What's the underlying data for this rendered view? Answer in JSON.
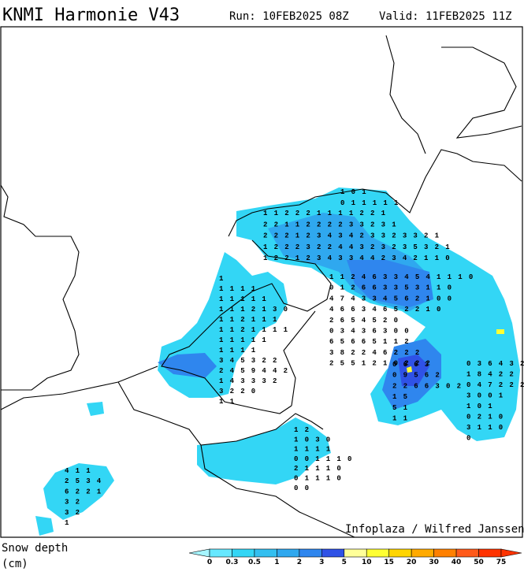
{
  "header": {
    "title": "KNMI Harmonie V43",
    "run": "Run: 10FEB2025 08Z",
    "valid": "Valid: 11FEB2025 11Z"
  },
  "credit": "Infoplaza / Wilfred Janssen",
  "legend": {
    "title": "Snow depth",
    "unit": "(cm)",
    "ticks": [
      0,
      0.3,
      0.5,
      1,
      2,
      3,
      5,
      10,
      15,
      20,
      30,
      40,
      50,
      75
    ],
    "colors": [
      "#a6f5ff",
      "#66e8ff",
      "#33d6f5",
      "#33bff0",
      "#2fa8ef",
      "#2f86ee",
      "#2f52e6",
      "#ffff99",
      "#ffff33",
      "#ffd500",
      "#ffaa00",
      "#ff8000",
      "#ff5a1a",
      "#ff3300"
    ]
  },
  "map_labels": [
    {
      "rows": [
        "1 0 1",
        "0 1 1 1 1 1"
      ]
    },
    {
      "rows": [
        "1 1 2 2 2 1 1 1 1 2 2 1",
        "2 2 1 1 2 2 2 2 3 3 2 3 1",
        "2 2 2 1 2 3 4 3 4 2 3 3 2 3 3 2 1",
        "1 2 2 2 3 2 2 4 4 3 2 3 2 3 5 3 2 1",
        "1 2 2 1 2 3 4 3 3 4 4 2 3 4 2 1 1 0"
      ]
    },
    {
      "rows": [
        "1 1 2 4 6 3 3 4 5 4 1 1 1 0",
        "0 1 2 6 6 3 3 5 3 1 1 0",
        "4 7 4 3 3 4 5 6 2 1 0 0",
        "4 6 6 3 4 6 5 2 2 1 0",
        "2 6 5 4 5 2 0",
        "0 3 4 3 6 3 0 0",
        "6 5 6 6 5 1 1 2",
        "3 8 2 2 4 6 2 2 2",
        "2 5 5 1 2 1 0 2 2 2"
      ]
    },
    {
      "rows": [
        "0 6 6 3",
        "0 9 5 6 2",
        "2 2 6 6 3 0 2",
        "1 5",
        "5 1",
        "1 1"
      ]
    },
    {
      "rows": [
        "0 3 6 4 3 2",
        "1 8 4 2 2",
        "0 4 7 2 2 2",
        "3 0 0 1",
        "1 0 1",
        "0 2 1 0",
        "3 1 1 0",
        "0"
      ]
    },
    {
      "rows": [
        "1",
        "1 1 1 1",
        "1 1 1 1 1",
        "1 1 1 2 1 3 0",
        "1 1 2 1 1 1",
        "1 1 2 1 1 1 1",
        "1 1 1 1 1",
        "1 1 1 1",
        "3 4 5 3 2 2",
        "2 4 5 9 4 4 2",
        "1 4 3 3 3 2",
        "3 2 2 0",
        "1 1"
      ]
    },
    {
      "rows": [
        "1 2",
        "1 0 3 0",
        "1 1 1 1",
        "0 0 1 1 1 0",
        "2 1 1 1 0",
        "0 1 1 1 0",
        "0 0"
      ]
    },
    {
      "rows": [
        "4 1 1",
        "2 5 3 4",
        "6 2 2 1",
        "3 2",
        "3 2",
        "1"
      ]
    }
  ]
}
